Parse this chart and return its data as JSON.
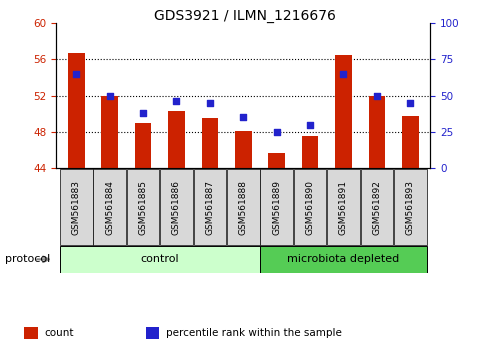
{
  "title": "GDS3921 / ILMN_1216676",
  "samples": [
    "GSM561883",
    "GSM561884",
    "GSM561885",
    "GSM561886",
    "GSM561887",
    "GSM561888",
    "GSM561889",
    "GSM561890",
    "GSM561891",
    "GSM561892",
    "GSM561893"
  ],
  "counts": [
    56.7,
    52.0,
    49.0,
    50.3,
    49.5,
    48.1,
    45.7,
    47.5,
    56.5,
    52.0,
    49.7
  ],
  "percentile_ranks": [
    65,
    50,
    38,
    46,
    45,
    35,
    25,
    30,
    65,
    50,
    45
  ],
  "bar_color": "#cc2200",
  "dot_color": "#2222cc",
  "ylim_left": [
    44,
    60
  ],
  "ylim_right": [
    0,
    100
  ],
  "yticks_left": [
    44,
    48,
    52,
    56,
    60
  ],
  "yticks_right": [
    0,
    25,
    50,
    75,
    100
  ],
  "bar_width": 0.5,
  "n_control": 6,
  "control_color": "#ccffcc",
  "microbiota_color": "#55cc55",
  "protocol_label": "protocol",
  "control_label": "control",
  "microbiota_label": "microbiota depleted",
  "legend_count_label": "count",
  "legend_pct_label": "percentile rank within the sample"
}
